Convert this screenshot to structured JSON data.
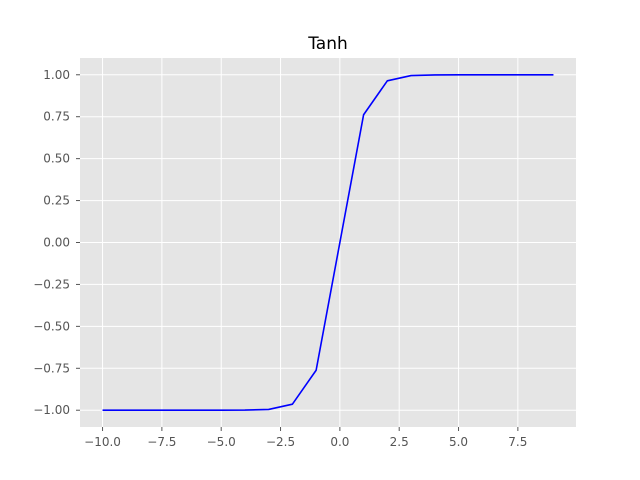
{
  "chart_data": {
    "type": "line",
    "title": "Tanh",
    "xlabel": "",
    "ylabel": "",
    "xlim": [
      -10.95,
      9.95
    ],
    "ylim": [
      -1.1,
      1.1
    ],
    "grid": true,
    "legend": "none",
    "colors": {
      "plot_background": "#e5e5e5",
      "grid": "#ffffff",
      "line": "#0000ff",
      "tick_label": "#555555"
    },
    "x_ticks": [
      -10.0,
      -7.5,
      -5.0,
      -2.5,
      0.0,
      2.5,
      5.0,
      7.5
    ],
    "x_tick_labels": [
      "−10.0",
      "−7.5",
      "−5.0",
      "−2.5",
      "0.0",
      "2.5",
      "5.0",
      "7.5"
    ],
    "y_ticks": [
      -1.0,
      -0.75,
      -0.5,
      -0.25,
      0.0,
      0.25,
      0.5,
      0.75,
      1.0
    ],
    "y_tick_labels": [
      "−1.00",
      "−0.75",
      "−0.50",
      "−0.25",
      "0.00",
      "0.25",
      "0.50",
      "0.75",
      "1.00"
    ],
    "series": [
      {
        "x": [
          -10,
          -9,
          -8,
          -7,
          -6,
          -5,
          -4,
          -3,
          -2,
          -1,
          0,
          1,
          2,
          3,
          4,
          5,
          6,
          7,
          8,
          9
        ],
        "y": [
          -1.0,
          -1.0,
          -1.0,
          -1.0,
          -1.0,
          -0.9999,
          -0.9993,
          -0.9951,
          -0.964,
          -0.7616,
          0.0,
          0.7616,
          0.964,
          0.9951,
          0.9993,
          0.9999,
          1.0,
          1.0,
          1.0,
          1.0
        ]
      }
    ]
  }
}
